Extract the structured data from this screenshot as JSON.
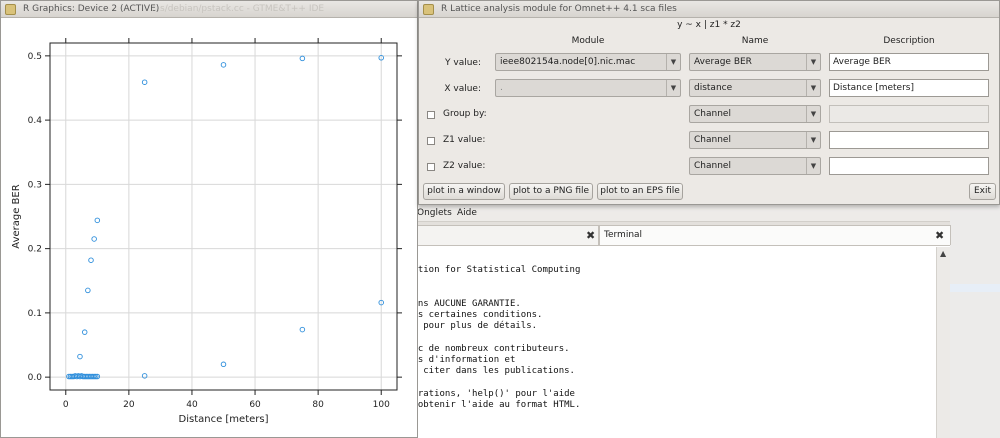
{
  "terminal": {
    "menu_items": [
      "Onglets",
      "Aide"
    ],
    "tabs": [
      {
        "label": ""
      },
      {
        "label": "Terminal"
      }
    ],
    "close_glyph": "✖",
    "lines": [
      "dation for Statistical Computing",
      "sans AUCUNE GARANTIE.",
      "ous certaines conditions.",
      ")' pour plus de détails.",
      "vec de nombreux contributeurs.",
      "lus d'information et",
      "le citer dans les publications.",
      "strations, 'help()' pour l'aide",
      "r obtenir l'aide au format HTML."
    ]
  },
  "r_graphics": {
    "title": "R Graphics: Device 2 (ACTIVE)",
    "ghost_title": "…s/debian/pstack.cc - GTME&T++ IDE"
  },
  "lattice": {
    "title": "R Lattice analysis module for Omnet++ 4.1 sca files",
    "formula": "y ~ x | z1 * z2",
    "headers": {
      "module": "Module",
      "name": "Name",
      "description": "Description"
    },
    "rows": {
      "y": {
        "label": "Y value:",
        "module": "ieee802154a.node[0].nic.mac",
        "name": "Average BER",
        "description": "Average BER"
      },
      "x": {
        "label": "X value:",
        "module": ".",
        "name": "distance",
        "description": "Distance [meters]"
      },
      "group": {
        "label": "Group by:",
        "name": "Channel",
        "description": ""
      },
      "z1": {
        "label": "Z1 value:",
        "name": "Channel",
        "description": ""
      },
      "z2": {
        "label": "Z2 value:",
        "name": "Channel",
        "description": ""
      }
    },
    "buttons": {
      "plot_window": "plot in a window",
      "plot_png": "plot to a PNG file",
      "plot_eps": "plot to an EPS file",
      "exit": "Exit"
    }
  },
  "chart_data": {
    "type": "scatter",
    "title": "",
    "xlabel": "Distance [meters]",
    "ylabel": "Average BER",
    "xlim": [
      -5,
      105
    ],
    "ylim": [
      -0.02,
      0.52
    ],
    "xticks": [
      0,
      20,
      40,
      60,
      80,
      100
    ],
    "yticks": [
      0.0,
      0.1,
      0.2,
      0.3,
      0.4,
      0.5
    ],
    "grid": true,
    "marker": "open-circle",
    "point_color": "#2f8fdc",
    "series": [
      {
        "x": [
          1,
          1.5,
          2,
          2.5,
          3,
          3.5,
          4,
          4.5,
          5,
          5.5,
          6,
          6.5,
          7,
          7.5,
          8,
          8.5,
          9,
          9.5,
          10,
          4.5,
          6,
          7,
          8,
          9,
          10,
          25,
          25,
          50,
          50,
          75,
          75,
          100,
          100
        ],
        "y": [
          0.001,
          0.001,
          0.001,
          0.001,
          0.002,
          0.001,
          0.002,
          0.001,
          0.002,
          0.001,
          0.001,
          0.001,
          0.001,
          0.001,
          0.001,
          0.001,
          0.001,
          0.001,
          0.001,
          0.032,
          0.07,
          0.135,
          0.182,
          0.215,
          0.244,
          0.459,
          0.002,
          0.486,
          0.02,
          0.496,
          0.074,
          0.497,
          0.116
        ]
      }
    ]
  }
}
